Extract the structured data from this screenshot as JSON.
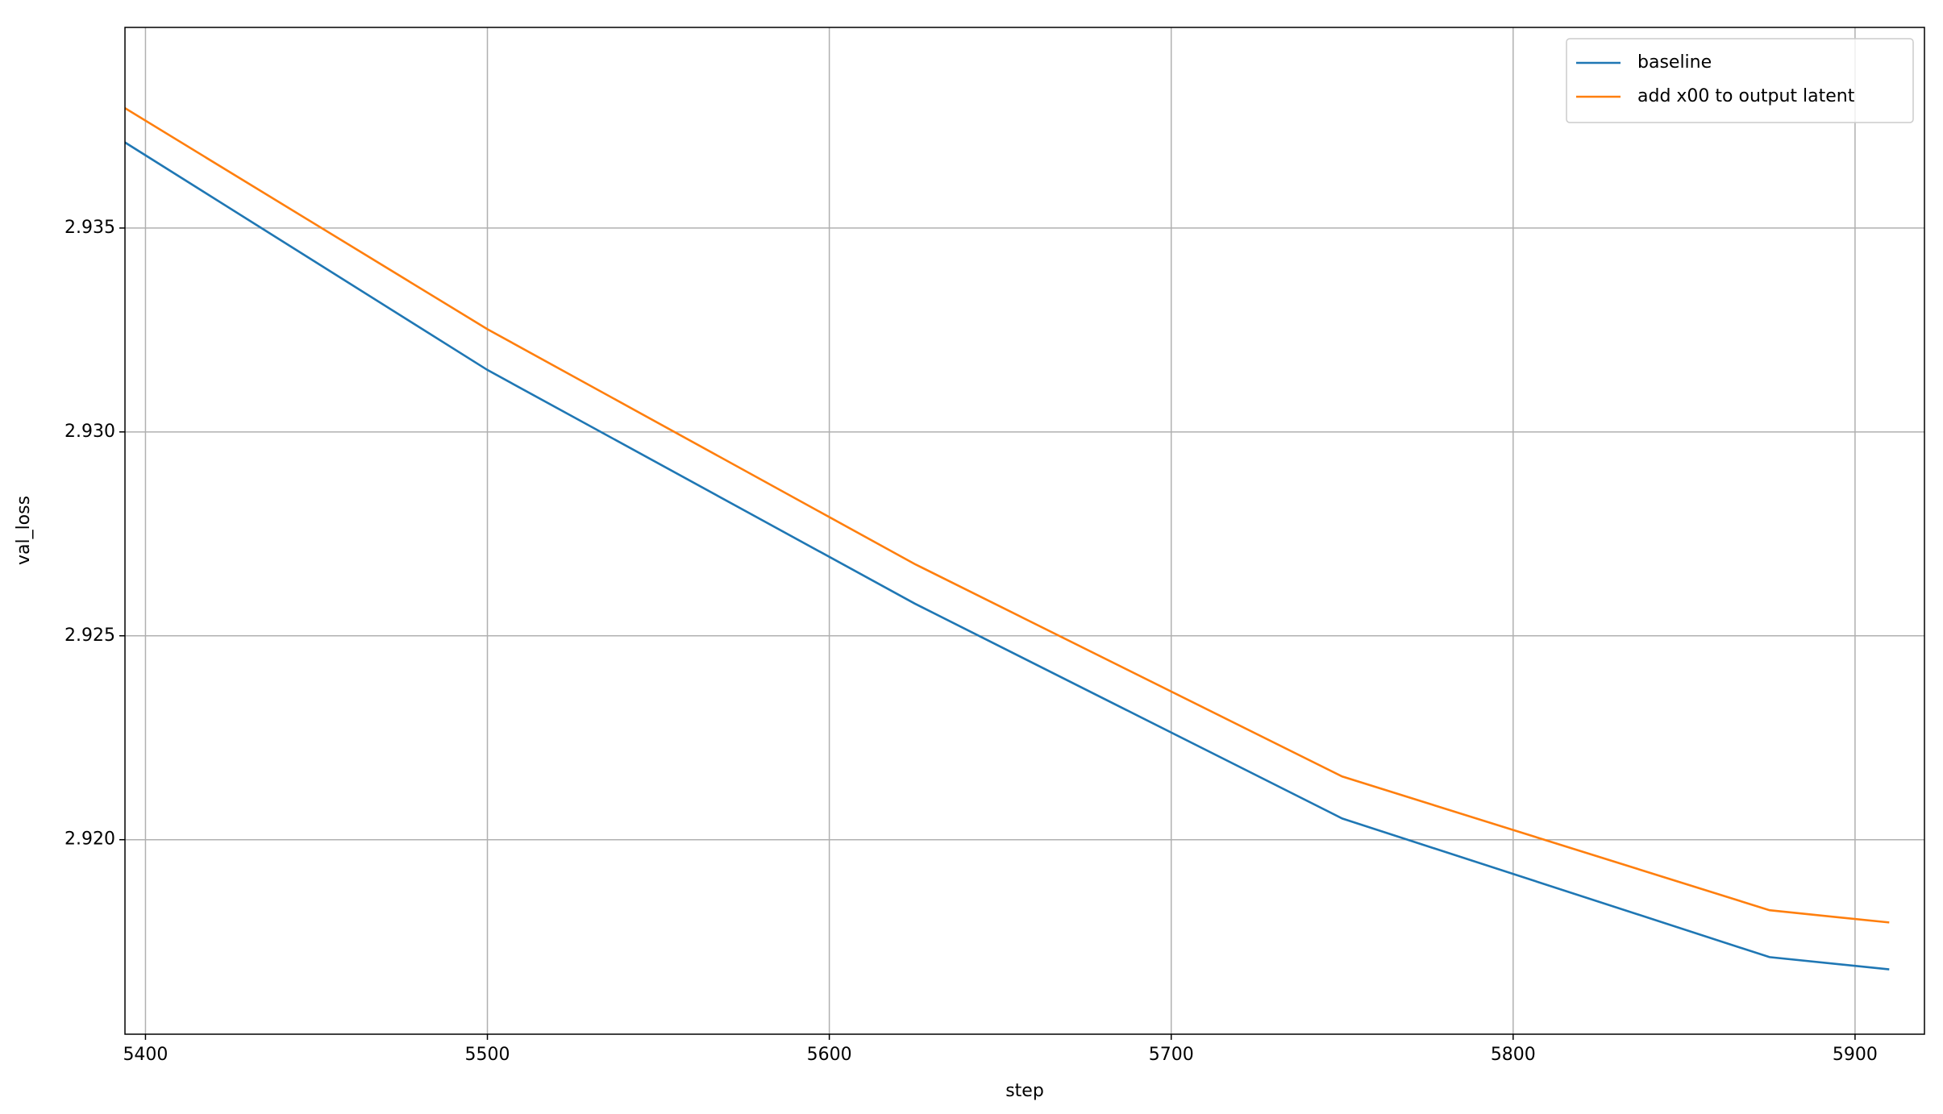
{
  "chart_data": {
    "type": "line",
    "x_label": "step",
    "y_label": "val_loss",
    "x": [
      5394,
      5500,
      5625,
      5750,
      5875,
      5910
    ],
    "series": [
      {
        "name": "baseline",
        "color": "#1f77b4",
        "values": [
          2.9371,
          2.93152,
          2.92579,
          2.92052,
          2.91712,
          2.91682
        ]
      },
      {
        "name": "add x00 to output latent",
        "color": "#ff7f0e",
        "values": [
          2.93794,
          2.93252,
          2.92676,
          2.92155,
          2.91827,
          2.91797
        ]
      }
    ],
    "xlim": [
      5394,
      5920.3
    ],
    "ylim": [
      2.91523,
      2.93992
    ],
    "xticks": [
      5400,
      5500,
      5600,
      5700,
      5800,
      5900
    ],
    "yticks": [
      {
        "value": 2.92,
        "label": "2.920"
      },
      {
        "value": 2.925,
        "label": "2.925"
      },
      {
        "value": 2.93,
        "label": "2.930"
      },
      {
        "value": 2.935,
        "label": "2.935"
      }
    ],
    "grid": true,
    "legend": "upper-right"
  }
}
